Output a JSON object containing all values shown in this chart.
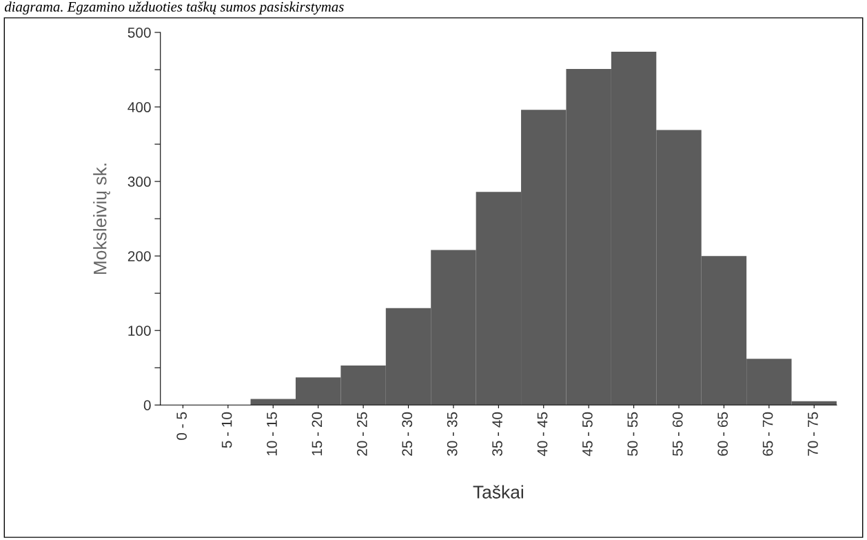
{
  "chart_data": {
    "type": "bar",
    "title": "diagrama. Egzamino užduoties taškų sumos pasiskirstymas",
    "xlabel": "Taškai",
    "ylabel": "Moksleivių sk.",
    "categories": [
      "0 - 5",
      "5 - 10",
      "10 - 15",
      "15 - 20",
      "20 - 25",
      "25 - 30",
      "30 - 35",
      "35 - 40",
      "40 - 45",
      "45 - 50",
      "50 - 55",
      "55 - 60",
      "60 - 65",
      "65 - 70",
      "70 - 75"
    ],
    "values": [
      0,
      0,
      8,
      37,
      53,
      130,
      208,
      286,
      396,
      451,
      474,
      369,
      200,
      62,
      5
    ],
    "color": "#5c5c5c",
    "ylim": [
      0,
      500
    ],
    "yticks": [
      0,
      {
        "value": 50,
        "label": null
      },
      100,
      {
        "value": 150,
        "label": null
      },
      200,
      {
        "value": 250,
        "label": null
      },
      300,
      {
        "value": 350,
        "label": null
      },
      400,
      {
        "value": 450,
        "label": null
      },
      500
    ],
    "grid": false,
    "legend": false
  }
}
